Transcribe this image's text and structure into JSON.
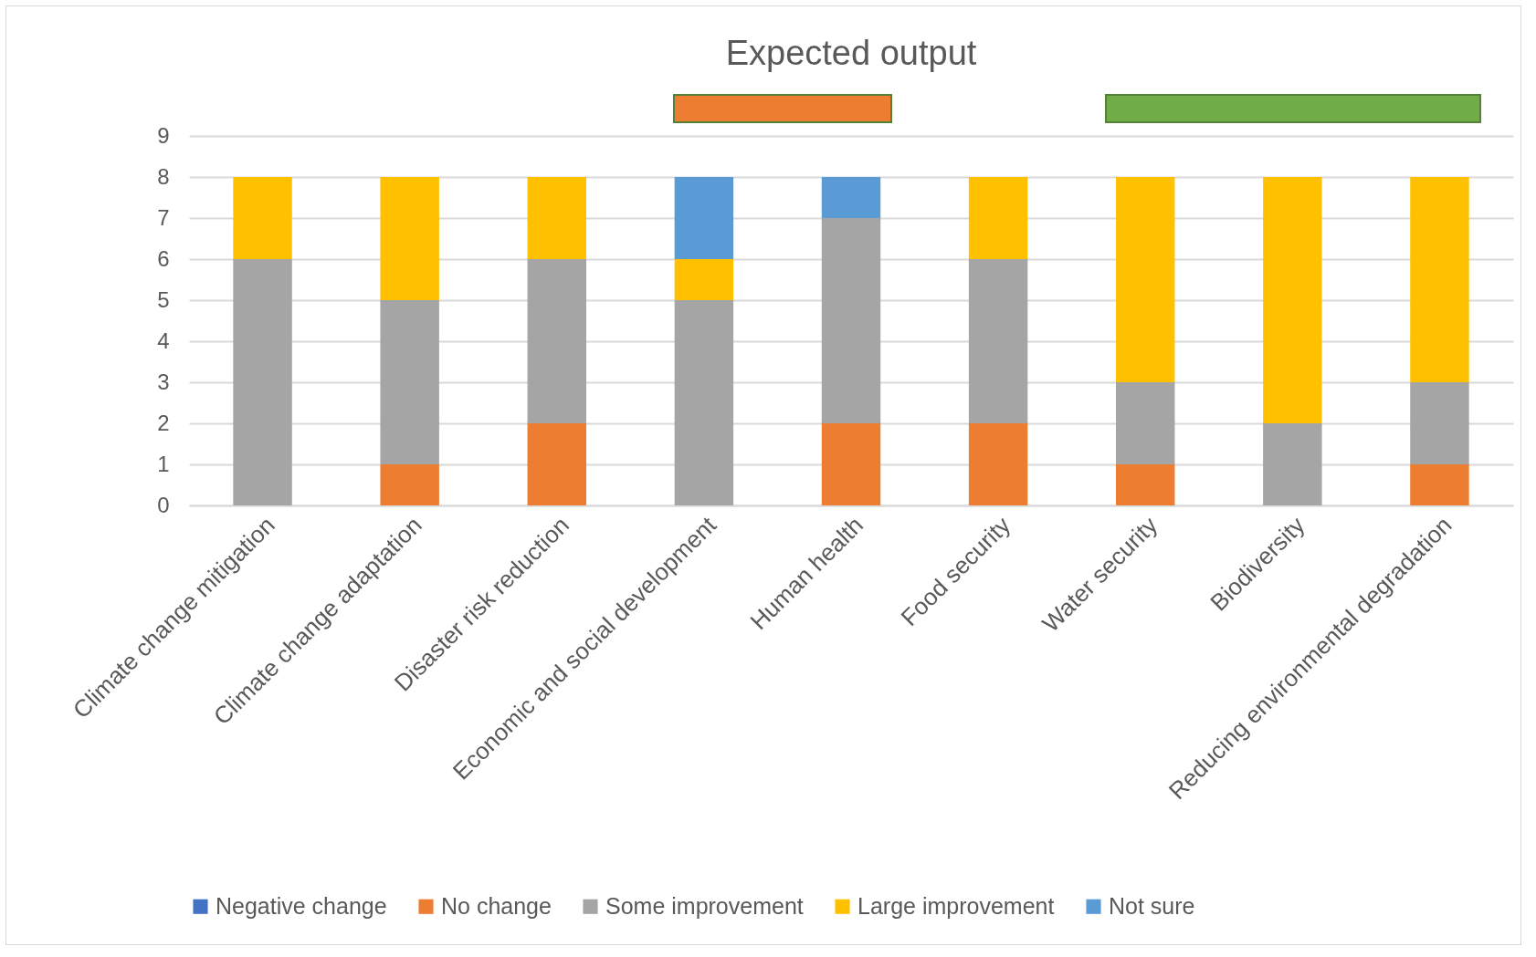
{
  "chart_data": {
    "type": "bar",
    "title": "Expected output",
    "stacked": true,
    "grid": "y",
    "legend": "bottom",
    "categories": [
      "Climate change mitigation",
      "Climate change adaptation",
      "Disaster risk reduction",
      "Economic and social development",
      "Human health",
      "Food security",
      "Water security",
      "Biodiversity",
      "Reducing environmental degradation"
    ],
    "ylim": [
      0,
      9
    ],
    "yticks": [
      0,
      1,
      2,
      3,
      4,
      5,
      6,
      7,
      8,
      9
    ],
    "series": [
      {
        "name": "Negative change",
        "color": "#4472c4",
        "values": [
          0,
          0,
          0,
          0,
          0,
          0,
          0,
          0,
          0
        ]
      },
      {
        "name": "No change",
        "color": "#ed7d31",
        "values": [
          0,
          1,
          2,
          0,
          2,
          2,
          1,
          0,
          1
        ]
      },
      {
        "name": "Some improvement",
        "color": "#a5a5a5",
        "values": [
          6,
          4,
          4,
          5,
          5,
          4,
          2,
          2,
          2
        ]
      },
      {
        "name": "Large improvement",
        "color": "#ffc000",
        "values": [
          2,
          3,
          2,
          1,
          0,
          2,
          5,
          6,
          5
        ]
      },
      {
        "name": "Not sure",
        "color": "#5b9bd5",
        "values": [
          0,
          0,
          0,
          2,
          1,
          0,
          0,
          0,
          0
        ]
      }
    ]
  }
}
